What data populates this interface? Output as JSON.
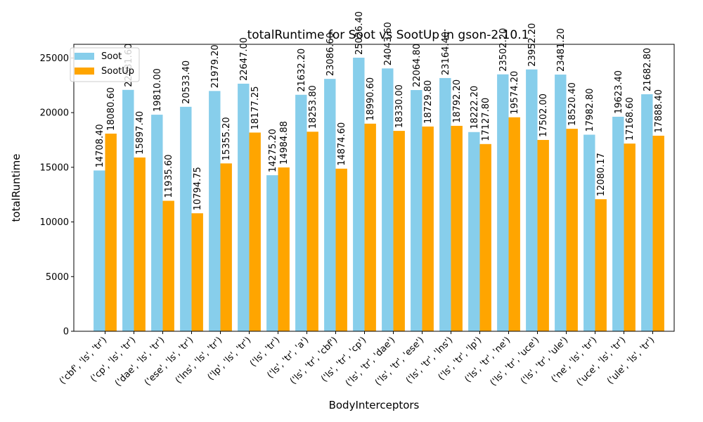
{
  "chart_data": {
    "type": "bar",
    "title": "totalRuntime for Soot vs SootUp in gson-2.10.1",
    "xlabel": "BodyInterceptors",
    "ylabel": "totalRuntime",
    "ylim": [
      0,
      26250
    ],
    "yticks": [
      0,
      5000,
      10000,
      15000,
      20000,
      25000
    ],
    "grid": false,
    "legend_position": "top-left",
    "categories": [
      "('cbf', 'ls', 'tr')",
      "('cp', 'ls', 'tr')",
      "('dae', 'ls', 'tr')",
      "('ese', 'ls', 'tr')",
      "('lns', 'ls', 'tr')",
      "('lp', 'ls', 'tr')",
      "('ls', 'tr')",
      "('ls', 'tr', 'a')",
      "('ls', 'tr', 'cbf')",
      "('ls', 'tr', 'cp')",
      "('ls', 'tr', 'dae')",
      "('ls', 'tr', 'ese')",
      "('ls', 'tr', 'lns')",
      "('ls', 'tr', 'lp')",
      "('ls', 'tr', 'ne')",
      "('ls', 'tr', 'uce')",
      "('ls', 'tr', 'ule')",
      "('ne', 'ls', 'tr')",
      "('uce', 'ls', 'tr')",
      "('ule', 'ls', 'tr')"
    ],
    "series": [
      {
        "name": "Soot",
        "color": "#87ceeb",
        "values": [
          14708.4,
          22081.6,
          19810.0,
          20533.4,
          21979.2,
          22647.0,
          14275.2,
          21632.2,
          23086.6,
          25026.4,
          24043.6,
          22064.8,
          23164.4,
          18222.2,
          23502.2,
          23952.2,
          23481.2,
          17982.8,
          19623.4,
          21682.8
        ],
        "labels": [
          "14708.40",
          "22081.60",
          "19810.00",
          "20533.40",
          "21979.20",
          "22647.00",
          "14275.20",
          "21632.20",
          "23086.60",
          "25026.40",
          "24043.60",
          "22064.80",
          "23164.40",
          "18222.20",
          "23502.20",
          "23952.20",
          "23481.20",
          "17982.80",
          "19623.40",
          "21682.80"
        ]
      },
      {
        "name": "SootUp",
        "color": "#ffa500",
        "values": [
          18080.6,
          15897.4,
          11935.6,
          10794.75,
          15355.2,
          18177.25,
          14984.88,
          18253.8,
          14874.6,
          18990.6,
          18330.0,
          18729.8,
          18792.2,
          17127.8,
          19574.2,
          17502.0,
          18520.4,
          12080.17,
          17168.6,
          17888.4
        ],
        "labels": [
          "18080.60",
          "15897.40",
          "11935.60",
          "10794.75",
          "15355.20",
          "18177.25",
          "14984.88",
          "18253.80",
          "14874.60",
          "18990.60",
          "18330.00",
          "18729.80",
          "18792.20",
          "17127.80",
          "19574.20",
          "17502.00",
          "18520.40",
          "12080.17",
          "17168.60",
          "17888.40"
        ]
      }
    ]
  }
}
